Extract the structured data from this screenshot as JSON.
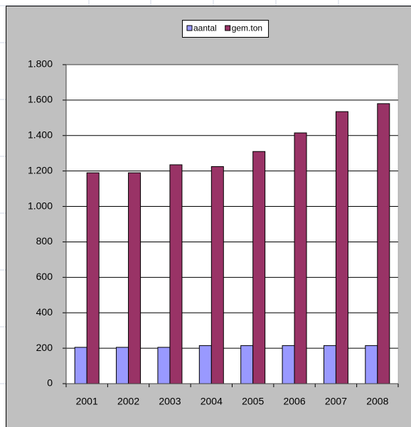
{
  "chart_data": {
    "type": "bar",
    "categories": [
      "2001",
      "2002",
      "2003",
      "2004",
      "2005",
      "2006",
      "2007",
      "2008"
    ],
    "series": [
      {
        "name": "aantal",
        "color": "#9999ff",
        "values": [
          205,
          205,
          205,
          215,
          215,
          215,
          215,
          215
        ]
      },
      {
        "name": "gem.ton",
        "color": "#993366",
        "values": [
          1190,
          1190,
          1235,
          1225,
          1310,
          1415,
          1535,
          1580
        ]
      }
    ],
    "ylim": [
      0,
      1800
    ],
    "yticks": [
      0,
      200,
      400,
      600,
      800,
      {
        "value": 1000,
        "label": "1.000"
      },
      {
        "value": 1200,
        "label": "1.200"
      },
      {
        "value": 1400,
        "label": "1.400"
      },
      {
        "value": 1600,
        "label": "1.600"
      },
      {
        "value": 1800,
        "label": "1.800"
      }
    ],
    "grid": true,
    "legend": "top"
  }
}
